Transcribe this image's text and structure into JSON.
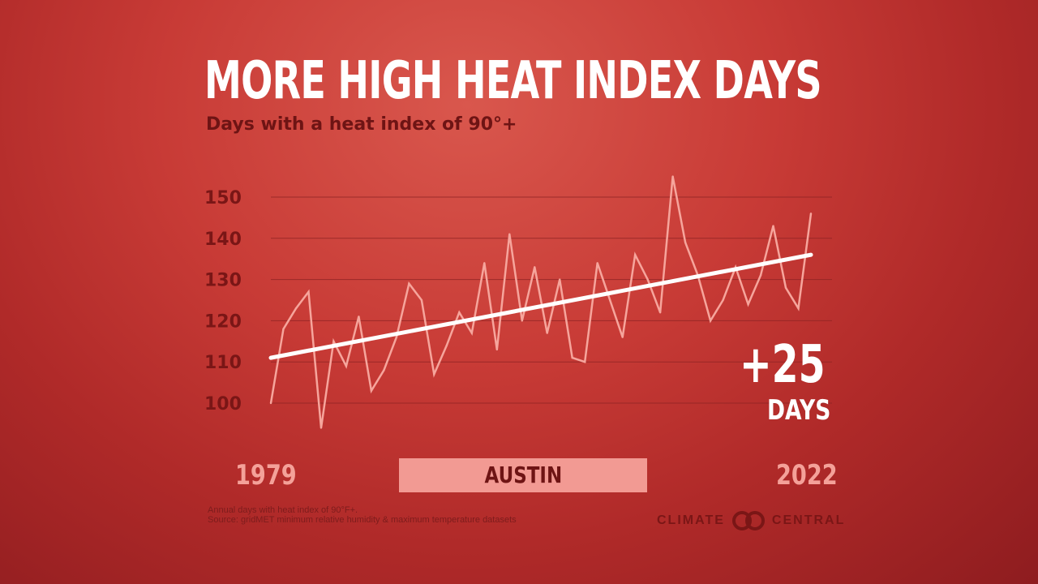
{
  "header": {
    "title": "MORE HIGH HEAT INDEX DAYS",
    "subtitle": "Days with a heat index of 90°+"
  },
  "callout": {
    "value": "+25",
    "unit": "DAYS"
  },
  "location": "AUSTIN",
  "footnote": {
    "line1": "Annual days with heat index of 90°F+.",
    "line2": "Source: gridMET minimum relative humidity & maximum temperature datasets"
  },
  "brand": {
    "left": "CLIMATE",
    "right": "CENTRAL",
    "logo_icon": "climate-central-logo-icon"
  },
  "colors": {
    "background": "#c83b36",
    "series_line": "#f6a59c",
    "trend_line": "#ffffff",
    "grid": "#8f2424",
    "tick_text": "#7a1616",
    "label_box": "#f29a93"
  },
  "chart_data": {
    "type": "line",
    "title": "MORE HIGH HEAT INDEX DAYS",
    "subtitle": "Days with a heat index of 90°+",
    "xlabel": "",
    "ylabel": "",
    "x": [
      1979,
      1980,
      1981,
      1982,
      1983,
      1984,
      1985,
      1986,
      1987,
      1988,
      1989,
      1990,
      1991,
      1992,
      1993,
      1994,
      1995,
      1996,
      1997,
      1998,
      1999,
      2000,
      2001,
      2002,
      2003,
      2004,
      2005,
      2006,
      2007,
      2008,
      2009,
      2010,
      2011,
      2012,
      2013,
      2014,
      2015,
      2016,
      2017,
      2018,
      2019,
      2020,
      2021,
      2022
    ],
    "x_tick_labels": [
      "1979",
      "2022"
    ],
    "series": [
      {
        "values": [
          100,
          118,
          123,
          127,
          94,
          115,
          109,
          121,
          103,
          108,
          116,
          129,
          125,
          107,
          114,
          122,
          117,
          134,
          113,
          141,
          120,
          133,
          117,
          130,
          111,
          110,
          134,
          125,
          116,
          136,
          130,
          122,
          155,
          139,
          131,
          120,
          125,
          133,
          124,
          131,
          143,
          128,
          123,
          146
        ]
      }
    ],
    "trend": {
      "start": 111,
      "end": 136,
      "change": 25
    },
    "yticks": [
      100,
      110,
      120,
      130,
      140,
      150
    ],
    "ylim": [
      93,
      156
    ],
    "grid": true,
    "legend": "none"
  }
}
